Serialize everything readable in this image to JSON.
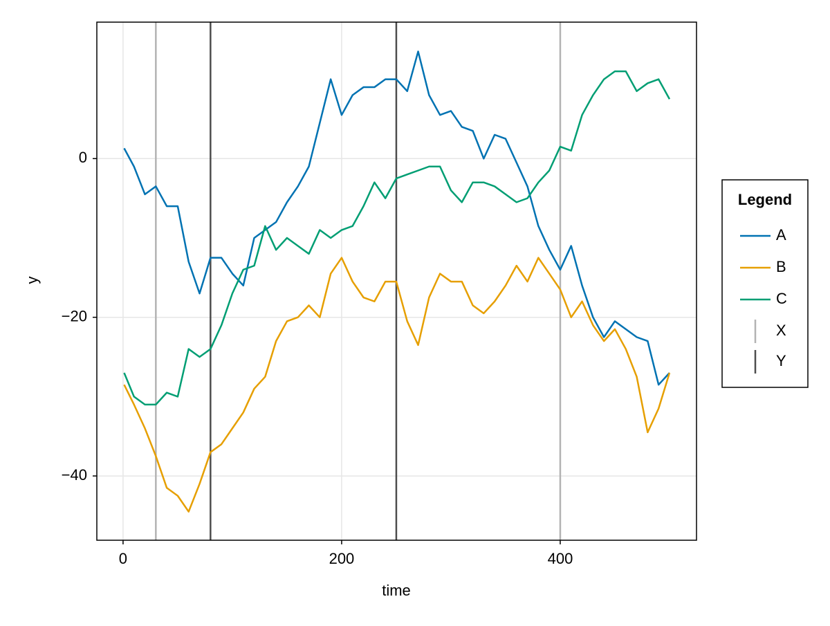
{
  "chart_data": {
    "type": "line",
    "xlabel": "time",
    "ylabel": "y",
    "x": [
      1,
      10,
      20,
      30,
      40,
      50,
      60,
      70,
      80,
      90,
      100,
      110,
      120,
      130,
      140,
      150,
      160,
      170,
      180,
      190,
      200,
      210,
      220,
      230,
      240,
      250,
      260,
      270,
      280,
      290,
      300,
      310,
      320,
      330,
      340,
      350,
      360,
      370,
      380,
      390,
      400,
      410,
      420,
      430,
      440,
      450,
      460,
      470,
      480,
      490,
      500
    ],
    "series": [
      {
        "name": "A",
        "color": "#0072b2",
        "values": [
          1.3,
          -1,
          -4.5,
          -3.5,
          -6,
          -6,
          -13,
          -17,
          -12.5,
          -12.5,
          -14.5,
          -16,
          -10,
          -9,
          -8,
          -5.5,
          -3.5,
          -1,
          4.5,
          10,
          5.5,
          8,
          9,
          9,
          10,
          10,
          8.5,
          13.5,
          8,
          5.5,
          6,
          4,
          3.5,
          0,
          3,
          2.5,
          -0.5,
          -3.5,
          -8.5,
          -11.5,
          -14,
          -11,
          -16,
          -20,
          -22.5,
          -20.5,
          -21.5,
          -22.5,
          -23,
          -28.5,
          -27
        ]
      },
      {
        "name": "B",
        "color": "#e69f00",
        "values": [
          -28.5,
          -31,
          -34,
          -37.5,
          -41.5,
          -42.5,
          -44.5,
          -41,
          -37,
          -36,
          -34,
          -32,
          -29,
          -27.5,
          -23,
          -20.5,
          -20,
          -18.5,
          -20,
          -14.5,
          -12.5,
          -15.5,
          -17.5,
          -18,
          -15.5,
          -15.5,
          -20.5,
          -23.5,
          -17.5,
          -14.5,
          -15.5,
          -15.5,
          -18.5,
          -19.5,
          -18,
          -16,
          -13.5,
          -15.5,
          -12.5,
          -14.5,
          -16.5,
          -20,
          -18,
          -21,
          -23,
          -21.5,
          -24,
          -27.5,
          -34.5,
          -31.5,
          -27
        ]
      },
      {
        "name": "C",
        "color": "#009e73",
        "values": [
          -27,
          -30,
          -31,
          -31,
          -29.5,
          -30,
          -24,
          -25,
          -24,
          -21,
          -17,
          -14,
          -13.5,
          -8.5,
          -11.5,
          -10,
          -11,
          -12,
          -9,
          -10,
          -9,
          -8.5,
          -6,
          -3,
          -5,
          -2.5,
          -2,
          -1.5,
          -1,
          -1,
          -4,
          -5.5,
          -3,
          -3,
          -3.5,
          -4.5,
          -5.5,
          -5,
          -3,
          -1.5,
          1.5,
          1,
          5.5,
          8,
          10,
          11,
          11,
          8.5,
          9.5,
          10,
          7.5
        ]
      }
    ],
    "vlines": [
      {
        "name": "X",
        "color": "#b3b3b3",
        "x": [
          30,
          400
        ]
      },
      {
        "name": "Y",
        "color": "#4d4d4d",
        "x": [
          80,
          250
        ]
      }
    ],
    "xlim": [
      -24,
      524.7
    ],
    "ylim": [
      -48.1,
      17.2
    ],
    "xticks": [
      0,
      200,
      400
    ],
    "yticks": [
      {
        "value": -40,
        "label": "−40"
      },
      {
        "value": -20,
        "label": "−20"
      },
      0
    ],
    "grid": true,
    "legend": {
      "title": "Legend",
      "position": "right"
    }
  }
}
